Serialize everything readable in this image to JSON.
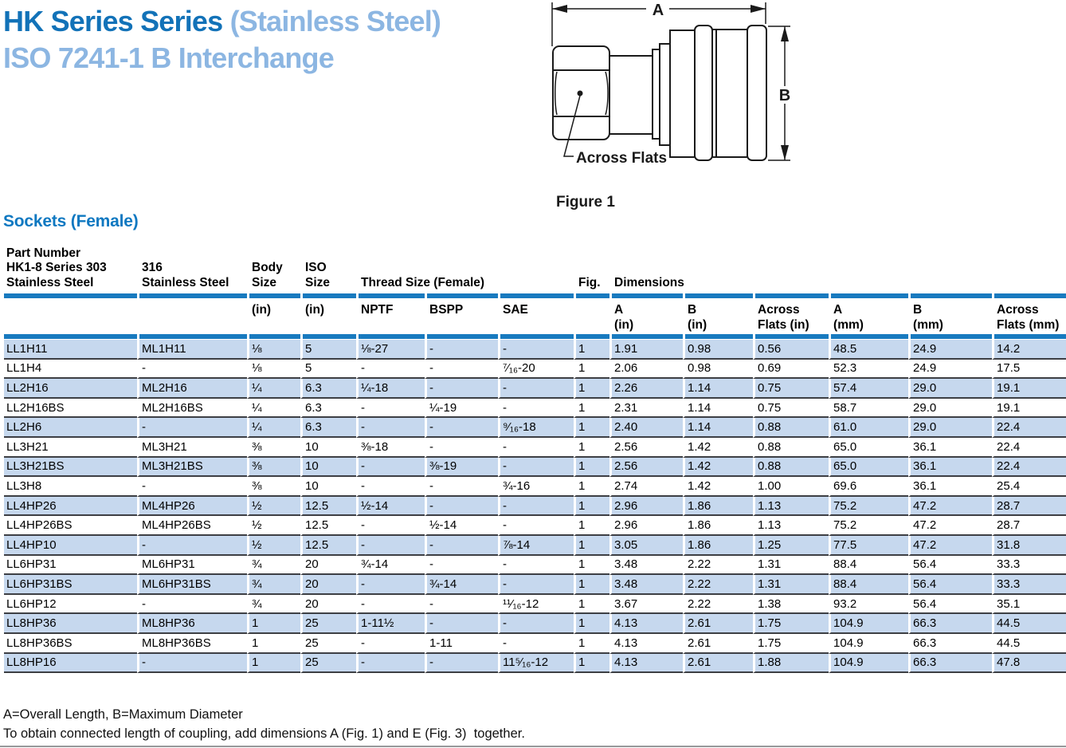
{
  "title": {
    "line1_dark": "HK Series Series",
    "line1_light": " (Stainless Steel)",
    "line2": "ISO 7241-1 B Interchange"
  },
  "section_heading": "Sockets (Female)",
  "figure": {
    "caption": "Figure 1",
    "dim_a_label": "A",
    "dim_b_label": "B",
    "across_flats_label": "Across Flats"
  },
  "table": {
    "header": {
      "part_number": "Part Number\nHK1-8 Series 303\nStainless Steel",
      "stainless_316": "316\nStainless Steel",
      "body_size": "Body\nSize",
      "iso_size": "ISO\nSize",
      "thread_size": "Thread Size (Female)",
      "fig": "Fig.",
      "dimensions": "Dimensions"
    },
    "subheader": {
      "body_in": "(in)",
      "iso_in": "(in)",
      "nptf": "NPTF",
      "bspp": "BSPP",
      "sae": "SAE",
      "a_in": "A\n(in)",
      "b_in": "B\n(in)",
      "across_flats_in": "Across\nFlats (in)",
      "a_mm": "A\n(mm)",
      "b_mm": "B\n(mm)",
      "across_flats_mm": "Across\nFlats (mm)"
    },
    "rows": [
      [
        "LL1H11",
        "ML1H11",
        "⅛",
        "5",
        "⅛-27",
        "-",
        "-",
        "1",
        "1.91",
        "0.98",
        "0.56",
        "48.5",
        "24.9",
        "14.2"
      ],
      [
        "LL1H4",
        "-",
        "⅛",
        "5",
        "-",
        "-",
        "⁷⁄₁₆-20",
        "1",
        "2.06",
        "0.98",
        "0.69",
        "52.3",
        "24.9",
        "17.5"
      ],
      [
        "LL2H16",
        "ML2H16",
        "¼",
        "6.3",
        "¼-18",
        "-",
        "-",
        "1",
        "2.26",
        "1.14",
        "0.75",
        "57.4",
        "29.0",
        "19.1"
      ],
      [
        "LL2H16BS",
        "ML2H16BS",
        "¼",
        "6.3",
        "-",
        "¼-19",
        "-",
        "1",
        "2.31",
        "1.14",
        "0.75",
        "58.7",
        "29.0",
        "19.1"
      ],
      [
        "LL2H6",
        "-",
        "¼",
        "6.3",
        "-",
        "-",
        "⁹⁄₁₆-18",
        "1",
        "2.40",
        "1.14",
        "0.88",
        "61.0",
        "29.0",
        "22.4"
      ],
      [
        "LL3H21",
        "ML3H21",
        "⅜",
        "10",
        "⅜-18",
        "-",
        "-",
        "1",
        "2.56",
        "1.42",
        "0.88",
        "65.0",
        "36.1",
        "22.4"
      ],
      [
        "LL3H21BS",
        "ML3H21BS",
        "⅜",
        "10",
        "-",
        "⅜-19",
        "-",
        "1",
        "2.56",
        "1.42",
        "0.88",
        "65.0",
        "36.1",
        "22.4"
      ],
      [
        "LL3H8",
        "-",
        "⅜",
        "10",
        "-",
        "-",
        "¾-16",
        "1",
        "2.74",
        "1.42",
        "1.00",
        "69.6",
        "36.1",
        "25.4"
      ],
      [
        "LL4HP26",
        "ML4HP26",
        "½",
        "12.5",
        "½-14",
        "-",
        "-",
        "1",
        "2.96",
        "1.86",
        "1.13",
        "75.2",
        "47.2",
        "28.7"
      ],
      [
        "LL4HP26BS",
        "ML4HP26BS",
        "½",
        "12.5",
        "-",
        "½-14",
        "-",
        "1",
        "2.96",
        "1.86",
        "1.13",
        "75.2",
        "47.2",
        "28.7"
      ],
      [
        "LL4HP10",
        "-",
        "½",
        "12.5",
        "-",
        "-",
        "⅞-14",
        "1",
        "3.05",
        "1.86",
        "1.25",
        "77.5",
        "47.2",
        "31.8"
      ],
      [
        "LL6HP31",
        "ML6HP31",
        "¾",
        "20",
        "¾-14",
        "-",
        "-",
        "1",
        "3.48",
        "2.22",
        "1.31",
        "88.4",
        "56.4",
        "33.3"
      ],
      [
        "LL6HP31BS",
        "ML6HP31BS",
        "¾",
        "20",
        "-",
        "¾-14",
        "-",
        "1",
        "3.48",
        "2.22",
        "1.31",
        "88.4",
        "56.4",
        "33.3"
      ],
      [
        "LL6HP12",
        "-",
        "¾",
        "20",
        "-",
        "-",
        "¹¹⁄₁₆-12",
        "1",
        "3.67",
        "2.22",
        "1.38",
        "93.2",
        "56.4",
        "35.1"
      ],
      [
        "LL8HP36",
        "ML8HP36",
        "1",
        "25",
        "1-11½",
        "-",
        "-",
        "1",
        "4.13",
        "2.61",
        "1.75",
        "104.9",
        "66.3",
        "44.5"
      ],
      [
        "LL8HP36BS",
        "ML8HP36BS",
        "1",
        "25",
        "-",
        "1-11",
        "-",
        "1",
        "4.13",
        "2.61",
        "1.75",
        "104.9",
        "66.3",
        "44.5"
      ],
      [
        "LL8HP16",
        "-",
        "1",
        "25",
        "-",
        "-",
        "11⁵⁄₁₆-12",
        "1",
        "4.13",
        "2.61",
        "1.88",
        "104.9",
        "66.3",
        "47.8"
      ]
    ]
  },
  "footnotes": {
    "line1": "A=Overall Length, B=Maximum Diameter",
    "line2": "To obtain connected length of coupling, add dimensions A (Fig. 1) and E (Fig. 3)  together."
  },
  "colors": {
    "accent_bar_blue": "#187abf",
    "row_highlight_blue": "#c6d8ee",
    "title_dark_blue": "#1272b8",
    "title_light_blue": "#8cb6e2",
    "heading_blue": "#0e78c1",
    "row_border_gray": "#3d3f44",
    "bottom_rule_gray": "#96989a"
  }
}
